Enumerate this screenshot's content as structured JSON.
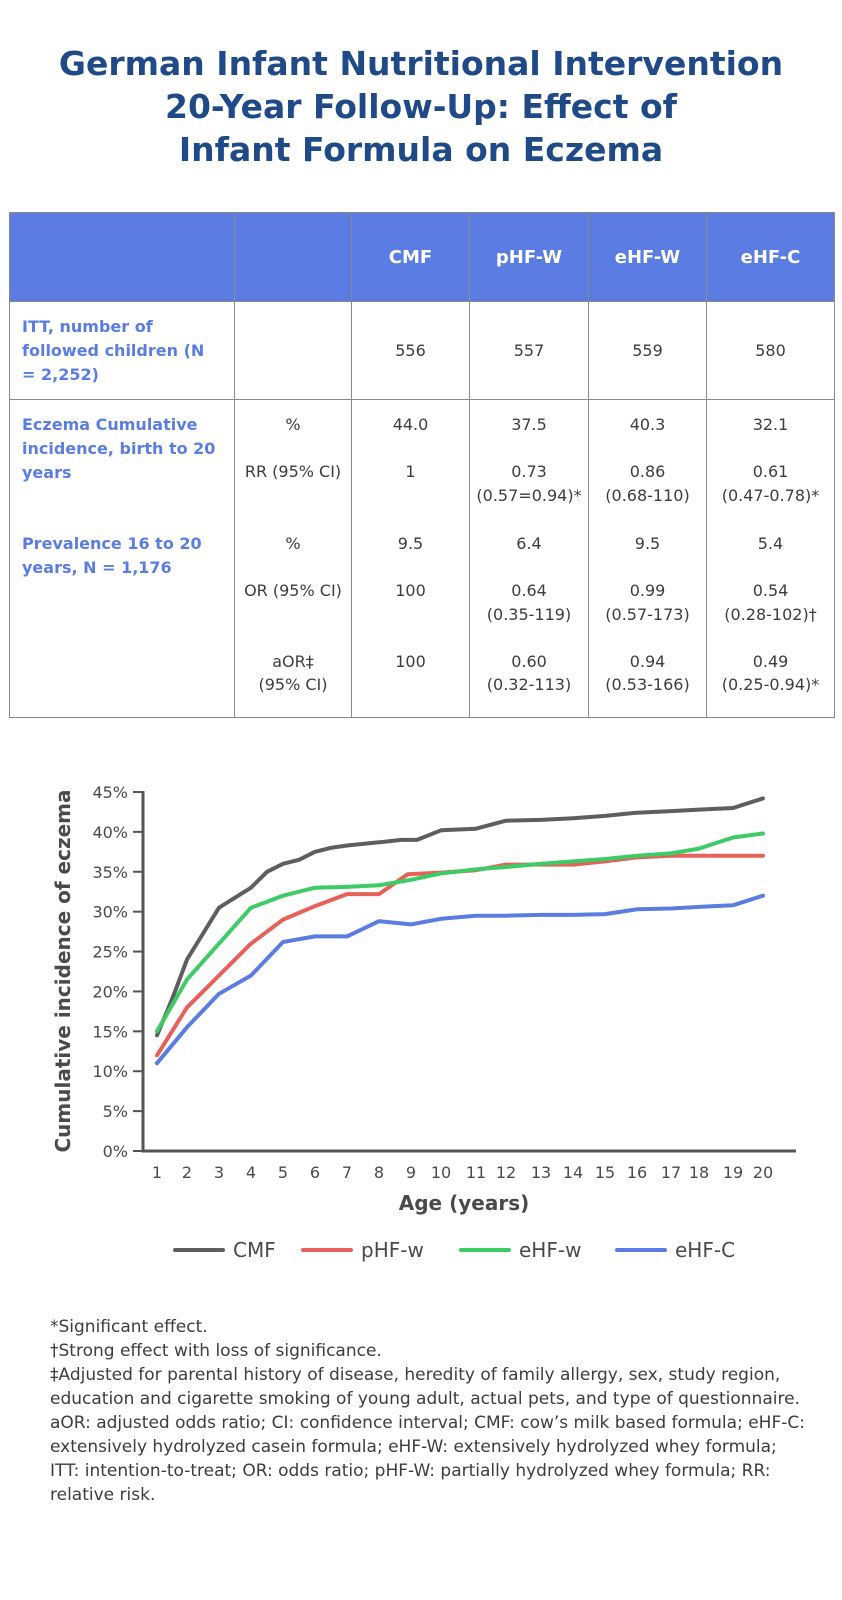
{
  "title_lines": [
    "German Infant Nutritional Intervention",
    "20-Year Follow-Up: Effect of",
    "Infant Formula on Eczema"
  ],
  "table": {
    "columns": [
      "CMF",
      "pHF-W",
      "eHF-W",
      "eHF-C"
    ],
    "itt": {
      "label": "ITT, number of followed children (N = 2,252)",
      "values": [
        "556",
        "557",
        "559",
        "580"
      ]
    },
    "eczema": {
      "label": "Eczema Cumulative incidence, birth to 20 years",
      "pct_label": "%",
      "pct": [
        "44.0",
        "37.5",
        "40.3",
        "32.1"
      ],
      "rr_label": "RR (95% CI)",
      "rr": [
        "1",
        "0.73",
        "0.86",
        "0.61"
      ],
      "rr_ci": [
        "",
        "(0.57=0.94)*",
        "(0.68-110)",
        "(0.47-0.78)*"
      ]
    },
    "prevalence": {
      "label": "Prevalence 16 to 20 years, N = 1,176",
      "pct_label": "%",
      "pct": [
        "9.5",
        "6.4",
        "9.5",
        "5.4"
      ],
      "or_label": "OR (95% CI)",
      "or": [
        "100",
        "0.64",
        "0.99",
        "0.54"
      ],
      "or_ci": [
        "",
        "(0.35-119)",
        "(0.57-173)",
        "(0.28-102)†"
      ],
      "aor_label_1": "aOR‡",
      "aor_label_2": "(95% CI)",
      "aor": [
        "100",
        "0.60",
        "0.94",
        "0.49"
      ],
      "aor_ci": [
        "",
        "(0.32-113)",
        "(0.53-166)",
        "(0.25-0.94)*"
      ]
    }
  },
  "chart_data": {
    "type": "line",
    "xlabel": "Age (years)",
    "ylabel": "Cumulative incidence of eczema",
    "ylim": [
      0,
      45
    ],
    "yticks": [
      "0%",
      "5%",
      "10%",
      "15%",
      "20%",
      "25%",
      "30%",
      "35%",
      "40%",
      "45%"
    ],
    "x": [
      1,
      2,
      3,
      4,
      5,
      6,
      7,
      8,
      9,
      10,
      11,
      12,
      13,
      14,
      15,
      16,
      17,
      18,
      19,
      20
    ],
    "legend_position": "bottom",
    "series": [
      {
        "name": "CMF",
        "color": "#5e5e5e",
        "points": [
          [
            1,
            14.5
          ],
          [
            1.5,
            19
          ],
          [
            2,
            24
          ],
          [
            3,
            30.5
          ],
          [
            4,
            33
          ],
          [
            4.5,
            35
          ],
          [
            5,
            36
          ],
          [
            5.5,
            36.5
          ],
          [
            6,
            37.5
          ],
          [
            6.5,
            38
          ],
          [
            7,
            38.3
          ],
          [
            8,
            38.7
          ],
          [
            8.7,
            39
          ],
          [
            9.2,
            39
          ],
          [
            10,
            40.2
          ],
          [
            11,
            40.4
          ],
          [
            12,
            41.4
          ],
          [
            13,
            41.5
          ],
          [
            14,
            41.7
          ],
          [
            15,
            42
          ],
          [
            16,
            42.4
          ],
          [
            17,
            42.6
          ],
          [
            18,
            42.8
          ],
          [
            19,
            43
          ],
          [
            20,
            44.2
          ]
        ]
      },
      {
        "name": "pHF-w",
        "color": "#e8605a",
        "points": [
          [
            1,
            12
          ],
          [
            2,
            18
          ],
          [
            3,
            22
          ],
          [
            4,
            26
          ],
          [
            5,
            29
          ],
          [
            6,
            30.7
          ],
          [
            7,
            32.2
          ],
          [
            8,
            32.2
          ],
          [
            8.9,
            34.7
          ],
          [
            10,
            34.9
          ],
          [
            11,
            35.2
          ],
          [
            12,
            35.9
          ],
          [
            13,
            35.9
          ],
          [
            14,
            35.9
          ],
          [
            15,
            36.3
          ],
          [
            16,
            36.8
          ],
          [
            17,
            37
          ],
          [
            18,
            37
          ],
          [
            19,
            37
          ],
          [
            20,
            37
          ]
        ]
      },
      {
        "name": "eHF-w",
        "color": "#3ecb66",
        "points": [
          [
            1,
            15
          ],
          [
            2,
            21.5
          ],
          [
            3,
            26
          ],
          [
            4,
            30.5
          ],
          [
            5,
            32
          ],
          [
            6,
            33
          ],
          [
            7,
            33.1
          ],
          [
            8,
            33.3
          ],
          [
            9,
            34
          ],
          [
            10,
            34.8
          ],
          [
            11,
            35.3
          ],
          [
            12,
            35.6
          ],
          [
            13,
            36
          ],
          [
            14,
            36.3
          ],
          [
            15,
            36.6
          ],
          [
            16,
            37
          ],
          [
            17,
            37.3
          ],
          [
            18,
            37.9
          ],
          [
            19,
            39.3
          ],
          [
            20,
            39.8
          ]
        ]
      },
      {
        "name": "eHF-C",
        "color": "#5b7de3",
        "points": [
          [
            1,
            11
          ],
          [
            2,
            15.5
          ],
          [
            3,
            19.7
          ],
          [
            4,
            22
          ],
          [
            5,
            26.2
          ],
          [
            6,
            26.9
          ],
          [
            7,
            26.9
          ],
          [
            8,
            28.8
          ],
          [
            9,
            28.4
          ],
          [
            10,
            29.1
          ],
          [
            11,
            29.5
          ],
          [
            12,
            29.5
          ],
          [
            13,
            29.6
          ],
          [
            14,
            29.6
          ],
          [
            15,
            29.7
          ],
          [
            16,
            30.3
          ],
          [
            17,
            30.4
          ],
          [
            18,
            30.6
          ],
          [
            19,
            30.8
          ],
          [
            20,
            32
          ]
        ]
      }
    ]
  },
  "notes": [
    "*Significant effect.",
    "†Strong effect with loss of significance.",
    "‡Adjusted for parental history of disease, heredity of family allergy, sex, study region, education and cigarette smoking of young adult, actual pets, and type of questionnaire.",
    "aOR: adjusted odds ratio; CI: confidence interval; CMF: cow’s milk based formula; eHF-C: extensively hydrolyzed casein formula; eHF-W: extensively hydrolyzed whey formula; ITT: intention-to-treat; OR: odds ratio; pHF-W: partially hydrolyzed whey formula; RR: relative risk."
  ]
}
